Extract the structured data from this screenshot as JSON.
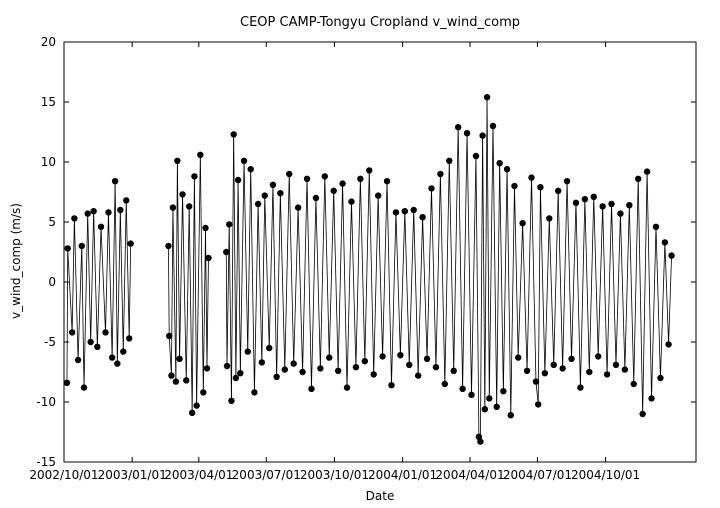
{
  "chart_data": {
    "type": "scatter",
    "title": "CEOP CAMP-Tongyu Cropland  v_wind_comp",
    "xlabel": "Date",
    "ylabel": "v_wind_comp (m/s)",
    "ylim": [
      -15,
      20
    ],
    "yticks": [
      "-15",
      "-10",
      "-5",
      "0",
      "5",
      "10",
      "15",
      "20"
    ],
    "xlim": [
      "2002-10-01",
      "2005-01-31"
    ],
    "xticks": [
      {
        "date": "2002-10-01",
        "label": "2002/10/01"
      },
      {
        "date": "2003-01-01",
        "label": "2003/01/01"
      },
      {
        "date": "2003-04-01",
        "label": "2003/04/01"
      },
      {
        "date": "2003-07-01",
        "label": "2003/07/01"
      },
      {
        "date": "2003-10-01",
        "label": "2003/10/01"
      },
      {
        "date": "2004-01-01",
        "label": "2004/01/01"
      },
      {
        "date": "2004-04-01",
        "label": "2004/04/01"
      },
      {
        "date": "2004-07-01",
        "label": "2004/07/01"
      },
      {
        "date": "2004-10-01",
        "label": "2004/10/01"
      }
    ],
    "grid": false,
    "marker": "filled-circle",
    "color": "#000000",
    "series": [
      {
        "points": [
          [
            "2002-10-05",
            -8.4
          ],
          [
            "2002-10-06",
            2.8
          ],
          [
            "2002-10-12",
            -4.2
          ],
          [
            "2002-10-15",
            5.3
          ],
          [
            "2002-10-20",
            -6.5
          ],
          [
            "2002-10-25",
            3.0
          ],
          [
            "2002-10-28",
            -8.8
          ],
          [
            "2002-11-02",
            5.7
          ],
          [
            "2002-11-06",
            -5.0
          ],
          [
            "2002-11-10",
            5.9
          ],
          [
            "2002-11-15",
            -5.4
          ],
          [
            "2002-11-20",
            4.6
          ],
          [
            "2002-11-26",
            -4.2
          ],
          [
            "2002-11-30",
            5.8
          ],
          [
            "2002-12-05",
            -6.3
          ],
          [
            "2002-12-09",
            8.4
          ],
          [
            "2002-12-12",
            -6.8
          ],
          [
            "2002-12-16",
            6.0
          ],
          [
            "2002-12-20",
            -5.8
          ],
          [
            "2002-12-24",
            6.8
          ],
          [
            "2002-12-28",
            -4.7
          ],
          [
            "2002-12-30",
            3.2
          ],
          [
            "2003-02-19",
            3.0
          ],
          [
            "2003-02-20",
            -4.5
          ],
          [
            "2003-02-23",
            -7.8
          ],
          [
            "2003-02-25",
            6.2
          ],
          [
            "2003-03-01",
            -8.3
          ],
          [
            "2003-03-03",
            10.1
          ],
          [
            "2003-03-06",
            -6.4
          ],
          [
            "2003-03-10",
            7.3
          ],
          [
            "2003-03-15",
            -8.2
          ],
          [
            "2003-03-19",
            6.3
          ],
          [
            "2003-03-23",
            -10.9
          ],
          [
            "2003-03-26",
            8.8
          ],
          [
            "2003-03-29",
            -10.3
          ],
          [
            "2003-04-03",
            10.6
          ],
          [
            "2003-04-07",
            -9.2
          ],
          [
            "2003-04-10",
            4.5
          ],
          [
            "2003-04-12",
            -7.2
          ],
          [
            "2003-04-14",
            2.0
          ],
          [
            "2003-05-08",
            2.5
          ],
          [
            "2003-05-09",
            -7.0
          ],
          [
            "2003-05-12",
            4.8
          ],
          [
            "2003-05-15",
            -9.9
          ],
          [
            "2003-05-18",
            12.3
          ],
          [
            "2003-05-21",
            -8.0
          ],
          [
            "2003-05-24",
            8.5
          ],
          [
            "2003-05-27",
            -7.6
          ],
          [
            "2003-06-01",
            10.1
          ],
          [
            "2003-06-06",
            -5.8
          ],
          [
            "2003-06-10",
            9.4
          ],
          [
            "2003-06-15",
            -9.2
          ],
          [
            "2003-06-20",
            6.5
          ],
          [
            "2003-06-25",
            -6.7
          ],
          [
            "2003-06-29",
            7.2
          ],
          [
            "2003-07-05",
            -5.5
          ],
          [
            "2003-07-10",
            8.1
          ],
          [
            "2003-07-15",
            -7.9
          ],
          [
            "2003-07-20",
            7.4
          ],
          [
            "2003-07-26",
            -7.3
          ],
          [
            "2003-08-01",
            9.0
          ],
          [
            "2003-08-07",
            -6.8
          ],
          [
            "2003-08-13",
            6.2
          ],
          [
            "2003-08-19",
            -7.5
          ],
          [
            "2003-08-25",
            8.6
          ],
          [
            "2003-08-31",
            -8.9
          ],
          [
            "2003-09-06",
            7.0
          ],
          [
            "2003-09-12",
            -7.2
          ],
          [
            "2003-09-18",
            8.8
          ],
          [
            "2003-09-24",
            -6.3
          ],
          [
            "2003-09-30",
            7.6
          ],
          [
            "2003-10-06",
            -7.4
          ],
          [
            "2003-10-12",
            8.2
          ],
          [
            "2003-10-18",
            -8.8
          ],
          [
            "2003-10-24",
            6.7
          ],
          [
            "2003-10-30",
            -7.1
          ],
          [
            "2003-11-05",
            8.6
          ],
          [
            "2003-11-11",
            -6.6
          ],
          [
            "2003-11-17",
            9.3
          ],
          [
            "2003-11-23",
            -7.7
          ],
          [
            "2003-11-29",
            7.2
          ],
          [
            "2003-12-05",
            -6.2
          ],
          [
            "2003-12-11",
            8.4
          ],
          [
            "2003-12-17",
            -8.6
          ],
          [
            "2003-12-23",
            5.8
          ],
          [
            "2003-12-29",
            -6.1
          ],
          [
            "2004-01-04",
            5.9
          ],
          [
            "2004-01-10",
            -6.9
          ],
          [
            "2004-01-16",
            6.0
          ],
          [
            "2004-01-22",
            -7.8
          ],
          [
            "2004-01-28",
            5.4
          ],
          [
            "2004-02-03",
            -6.4
          ],
          [
            "2004-02-09",
            7.8
          ],
          [
            "2004-02-15",
            -7.1
          ],
          [
            "2004-02-21",
            9.0
          ],
          [
            "2004-02-27",
            -8.5
          ],
          [
            "2004-03-04",
            10.1
          ],
          [
            "2004-03-10",
            -7.4
          ],
          [
            "2004-03-16",
            12.9
          ],
          [
            "2004-03-22",
            -8.9
          ],
          [
            "2004-03-28",
            12.4
          ],
          [
            "2004-04-03",
            -9.4
          ],
          [
            "2004-04-09",
            10.5
          ],
          [
            "2004-04-13",
            -12.9
          ],
          [
            "2004-04-15",
            -13.3
          ],
          [
            "2004-04-18",
            12.2
          ],
          [
            "2004-04-21",
            -10.6
          ],
          [
            "2004-04-24",
            15.4
          ],
          [
            "2004-04-27",
            -9.7
          ],
          [
            "2004-05-02",
            13.0
          ],
          [
            "2004-05-07",
            -10.4
          ],
          [
            "2004-05-11",
            9.9
          ],
          [
            "2004-05-16",
            -9.1
          ],
          [
            "2004-05-21",
            9.4
          ],
          [
            "2004-05-26",
            -11.1
          ],
          [
            "2004-05-31",
            8.0
          ],
          [
            "2004-06-05",
            -6.3
          ],
          [
            "2004-06-11",
            4.9
          ],
          [
            "2004-06-17",
            -7.4
          ],
          [
            "2004-06-23",
            8.7
          ],
          [
            "2004-06-29",
            -8.3
          ],
          [
            "2004-07-02",
            -10.2
          ],
          [
            "2004-07-05",
            7.9
          ],
          [
            "2004-07-11",
            -7.6
          ],
          [
            "2004-07-17",
            5.3
          ],
          [
            "2004-07-23",
            -6.9
          ],
          [
            "2004-07-29",
            7.6
          ],
          [
            "2004-08-04",
            -7.2
          ],
          [
            "2004-08-10",
            8.4
          ],
          [
            "2004-08-16",
            -6.4
          ],
          [
            "2004-08-22",
            6.6
          ],
          [
            "2004-08-28",
            -8.8
          ],
          [
            "2004-09-03",
            6.9
          ],
          [
            "2004-09-09",
            -7.5
          ],
          [
            "2004-09-15",
            7.1
          ],
          [
            "2004-09-21",
            -6.2
          ],
          [
            "2004-09-27",
            6.3
          ],
          [
            "2004-10-03",
            -7.7
          ],
          [
            "2004-10-09",
            6.5
          ],
          [
            "2004-10-15",
            -6.9
          ],
          [
            "2004-10-21",
            5.7
          ],
          [
            "2004-10-27",
            -7.3
          ],
          [
            "2004-11-02",
            6.4
          ],
          [
            "2004-11-08",
            -8.5
          ],
          [
            "2004-11-14",
            8.6
          ],
          [
            "2004-11-20",
            -11.0
          ],
          [
            "2004-11-26",
            9.2
          ],
          [
            "2004-12-02",
            -9.7
          ],
          [
            "2004-12-08",
            4.6
          ],
          [
            "2004-12-14",
            -8.0
          ],
          [
            "2004-12-20",
            3.3
          ],
          [
            "2004-12-25",
            -5.2
          ],
          [
            "2004-12-29",
            2.2
          ]
        ]
      }
    ]
  }
}
